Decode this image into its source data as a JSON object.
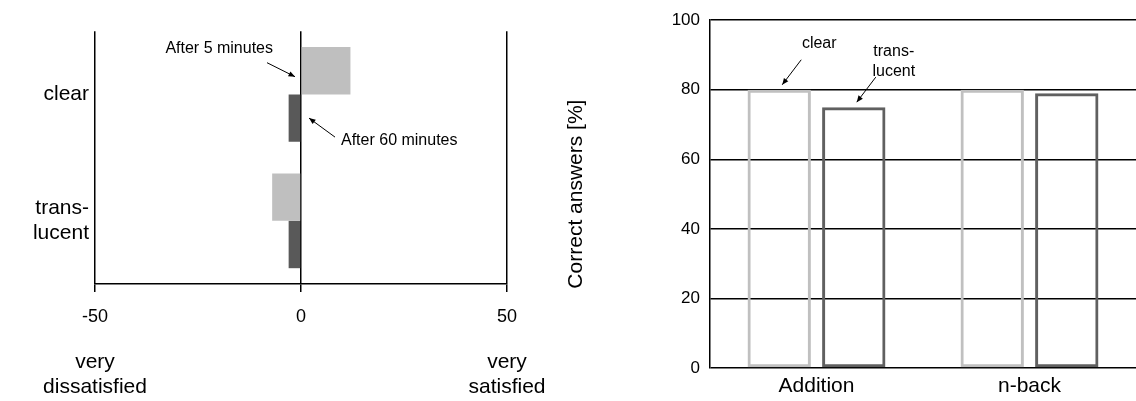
{
  "chart_data": [
    {
      "type": "bar",
      "orientation": "horizontal",
      "categories": [
        "clear",
        "trans-\nlucent"
      ],
      "series": [
        {
          "name": "After 5 minutes",
          "color": "#bfbfbf",
          "values": [
            12,
            -7
          ]
        },
        {
          "name": "After 60 minutes",
          "color": "#595959",
          "values": [
            -3,
            -3
          ]
        }
      ],
      "xlim": [
        -50,
        50
      ],
      "xticks": [
        -50,
        0,
        50
      ],
      "grid": "x",
      "annotations": [
        "very\ndissatisfied",
        "very\nsatisfied"
      ]
    },
    {
      "type": "bar",
      "categories": [
        "Addition",
        "n-back"
      ],
      "ylabel": "Correct answers [%]",
      "series": [
        {
          "name": "clear",
          "color": "#c0c0c0",
          "values": [
            80,
            80
          ]
        },
        {
          "name": "trans-\nlucent",
          "color": "#606060",
          "values": [
            75,
            79
          ]
        }
      ],
      "ylim": [
        0,
        100
      ],
      "yticks": [
        0,
        20,
        40,
        60,
        80,
        100
      ],
      "grid": "y"
    }
  ]
}
